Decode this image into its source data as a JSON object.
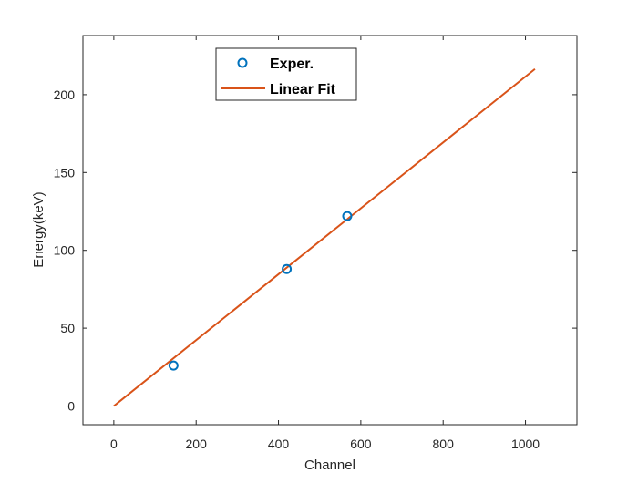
{
  "chart_data": {
    "type": "scatter",
    "title": "",
    "xlabel": "Channel",
    "ylabel": "Energy(keV)",
    "xlim": [
      -75,
      1125
    ],
    "ylim": [
      -12,
      238
    ],
    "x_ticks": [
      0,
      200,
      400,
      600,
      800,
      1000
    ],
    "y_ticks": [
      0,
      50,
      100,
      150,
      200
    ],
    "grid": false,
    "legend_position": "top",
    "series": [
      {
        "name": "Exper.",
        "kind": "markers",
        "marker": "circle-open",
        "color": "#0072BD",
        "x": [
          145,
          420,
          567
        ],
        "y": [
          26,
          88,
          122
        ]
      },
      {
        "name": "Linear Fit",
        "kind": "line",
        "color": "#D95319",
        "x": [
          0,
          1023
        ],
        "y": [
          0,
          216.5
        ]
      }
    ]
  }
}
